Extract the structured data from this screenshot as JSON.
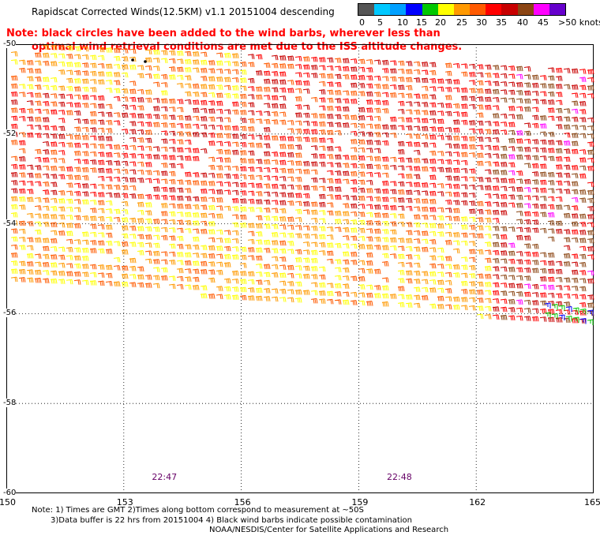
{
  "title": "Rapidscat Corrected Winds(12.5KM) v1.1 20151004 descending",
  "note_line1": "Note: black circles have been added to the wind barbs, wherever less than",
  "note_line2": "optimal wind retrieval conditions are met due to the ISS altitude changes.",
  "colorbar": {
    "labels": [
      "0",
      "5",
      "10",
      "15",
      "20",
      "25",
      "30",
      "35",
      "40",
      "45",
      ">50 knots"
    ],
    "colors": [
      "#555555",
      "#00c8ff",
      "#00a0ff",
      "#0000ff",
      "#00c800",
      "#ffff00",
      "#ff9900",
      "#ff5a00",
      "#ff0000",
      "#c80000",
      "#8b4513",
      "#ff00ff",
      "#6600cc"
    ]
  },
  "map": {
    "lat_labels": [
      "-50",
      "-52",
      "-54",
      "-56",
      "-58",
      "-60"
    ],
    "lon_labels": [
      "150",
      "153",
      "156",
      "159",
      "162",
      "165"
    ],
    "lat_range": [
      -60,
      -50
    ],
    "lon_range": [
      150,
      165
    ],
    "time_labels": [
      {
        "text": "22:47",
        "lon": 154
      },
      {
        "text": "22:48",
        "lon": 160
      }
    ]
  },
  "footnote_line1": "Note: 1) Times are GMT 2)Times along bottom correspond to measurement at ~50S",
  "footnote_line2": "3)Data buffer is 22 hrs from 20151004 4) Black wind barbs indicate possible contamination",
  "credit": "NOAA/NESDIS/Center for Satellite Applications and Research"
}
